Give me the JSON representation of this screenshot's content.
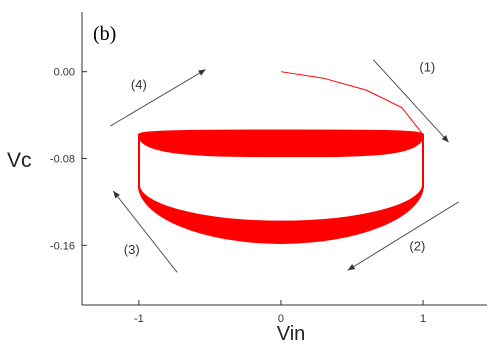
{
  "chart_data": {
    "type": "line",
    "title": "",
    "panel_label": "(b)",
    "xlabel": "Vin",
    "ylabel": "Vc",
    "xlim": [
      -1.4,
      1.45
    ],
    "ylim": [
      -0.215,
      0.055
    ],
    "x_ticks": [
      -1,
      0,
      1
    ],
    "x_tick_labels": [
      "-1",
      "0",
      "1"
    ],
    "y_ticks": [
      0.0,
      -0.08,
      -0.16
    ],
    "y_tick_labels": [
      "0.00",
      "-0.08",
      "-0.16"
    ],
    "grid": false,
    "legend": "none",
    "series_color": "#ff0000",
    "series": [
      {
        "loop": {
          "x_range": [
            -1,
            1
          ],
          "upper_start": -0.054,
          "upper_end": -0.078,
          "lower_start": -0.138,
          "lower_end": -0.158,
          "side_top": -0.058,
          "side_bottom": -0.104,
          "cycles": 45
        },
        "initial_trace": {
          "x": [
            0.0,
            0.3,
            0.6,
            0.85,
            1.0
          ],
          "y": [
            0.0,
            -0.006,
            -0.017,
            -0.033,
            -0.058
          ]
        }
      }
    ],
    "annotations": [
      {
        "label": "(1)",
        "from": [
          0.65,
          0.011
        ],
        "to": [
          1.18,
          -0.065
        ],
        "label_at": [
          1.03,
          0.0
        ]
      },
      {
        "label": "(2)",
        "from": [
          1.25,
          -0.12
        ],
        "to": [
          0.47,
          -0.183
        ],
        "label_at": [
          0.96,
          -0.165
        ]
      },
      {
        "label": "(3)",
        "from": [
          -0.73,
          -0.185
        ],
        "to": [
          -1.18,
          -0.11
        ],
        "label_at": [
          -1.05,
          -0.168
        ]
      },
      {
        "label": "(4)",
        "from": [
          -1.2,
          -0.05
        ],
        "to": [
          -0.53,
          0.002
        ],
        "label_at": [
          -1.0,
          -0.016
        ]
      }
    ]
  }
}
